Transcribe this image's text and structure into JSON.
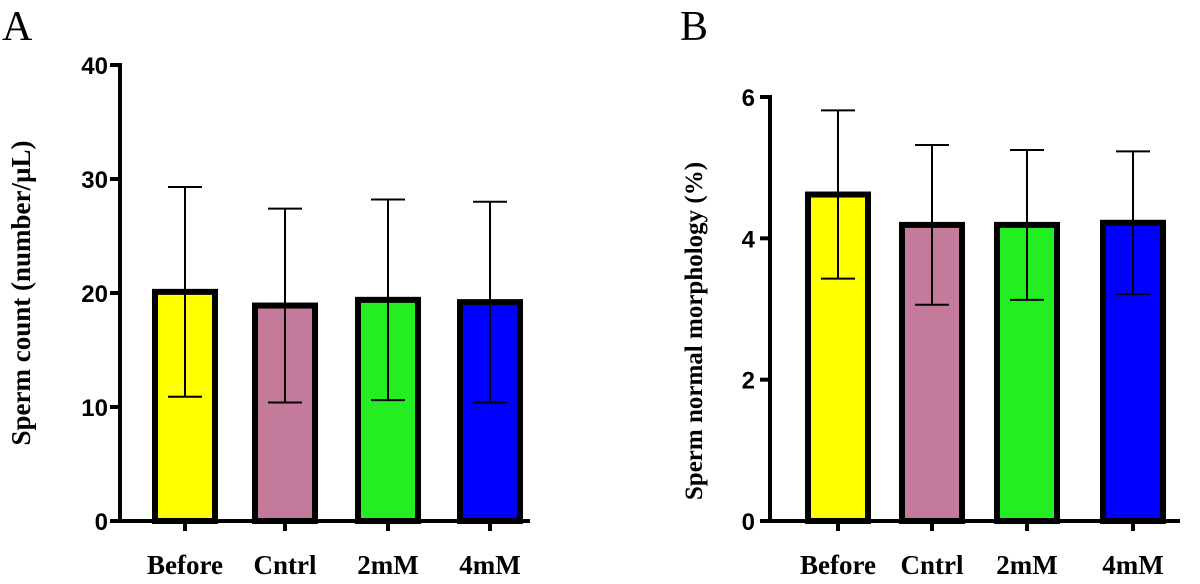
{
  "chart_data": [
    {
      "panel": "A",
      "type": "bar",
      "ylabel": "Sperm count (number/µL)",
      "xlabel": "",
      "categories": [
        "Before",
        "Cntrl",
        "2mM",
        "4mM"
      ],
      "values": [
        20.1,
        18.9,
        19.4,
        19.2
      ],
      "error": [
        9.2,
        8.5,
        8.8,
        8.8
      ],
      "colors": [
        "#ffff00",
        "#c47b9b",
        "#22ee22",
        "#0000ff"
      ],
      "ylim": [
        0,
        40
      ],
      "yticks": [
        "0",
        "10",
        "20",
        "30",
        "40"
      ],
      "grid": false
    },
    {
      "panel": "B",
      "type": "bar",
      "ylabel": "Sperm normal morphology (%)",
      "xlabel": "",
      "categories": [
        "Before",
        "Cntrl",
        "2mM",
        "4mM"
      ],
      "values": [
        4.62,
        4.19,
        4.19,
        4.22
      ],
      "error": [
        1.19,
        1.13,
        1.06,
        1.01
      ],
      "colors": [
        "#ffff00",
        "#c47b9b",
        "#22ee22",
        "#0000ff"
      ],
      "ylim": [
        0,
        6
      ],
      "yticks": [
        "0",
        "2",
        "4",
        "6"
      ],
      "grid": false
    }
  ]
}
